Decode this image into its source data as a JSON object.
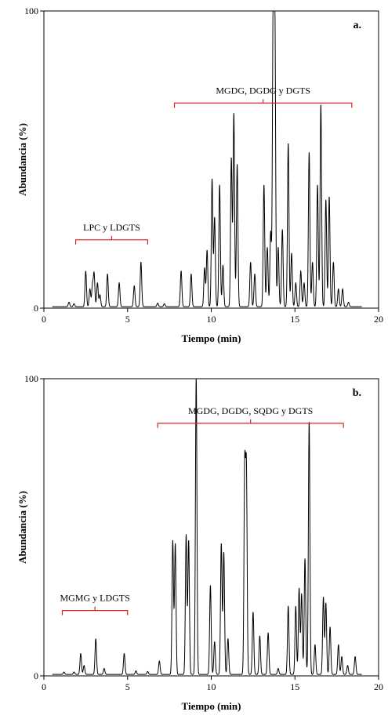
{
  "chart_data": [
    {
      "type": "line",
      "panel_label": "a.",
      "xlabel": "Tiempo (min)",
      "ylabel": "Abundancia (%)",
      "xlim": [
        0,
        20
      ],
      "ylim": [
        0,
        100
      ],
      "xticks": [
        0,
        5,
        10,
        15,
        20
      ],
      "yticks": [
        0,
        100
      ],
      "grid": false,
      "baseline": 0.5,
      "peaks": [
        {
          "x": 1.5,
          "y": 1.5
        },
        {
          "x": 1.8,
          "y": 1.0
        },
        {
          "x": 2.5,
          "y": 12
        },
        {
          "x": 2.75,
          "y": 6
        },
        {
          "x": 2.9,
          "y": 7
        },
        {
          "x": 3.0,
          "y": 11
        },
        {
          "x": 3.2,
          "y": 8
        },
        {
          "x": 3.35,
          "y": 4
        },
        {
          "x": 3.8,
          "y": 11
        },
        {
          "x": 4.5,
          "y": 8
        },
        {
          "x": 5.4,
          "y": 7
        },
        {
          "x": 5.8,
          "y": 15
        },
        {
          "x": 6.8,
          "y": 1.2
        },
        {
          "x": 7.2,
          "y": 1.0
        },
        {
          "x": 8.2,
          "y": 12
        },
        {
          "x": 8.8,
          "y": 11
        },
        {
          "x": 9.6,
          "y": 13
        },
        {
          "x": 9.75,
          "y": 19
        },
        {
          "x": 10.05,
          "y": 43
        },
        {
          "x": 10.2,
          "y": 30
        },
        {
          "x": 10.5,
          "y": 41
        },
        {
          "x": 10.7,
          "y": 14
        },
        {
          "x": 11.2,
          "y": 50
        },
        {
          "x": 11.35,
          "y": 65
        },
        {
          "x": 11.55,
          "y": 48
        },
        {
          "x": 12.35,
          "y": 15
        },
        {
          "x": 12.6,
          "y": 11
        },
        {
          "x": 13.15,
          "y": 41
        },
        {
          "x": 13.35,
          "y": 20
        },
        {
          "x": 13.55,
          "y": 25
        },
        {
          "x": 13.7,
          "y": 100
        },
        {
          "x": 13.8,
          "y": 96
        },
        {
          "x": 14.0,
          "y": 20
        },
        {
          "x": 14.25,
          "y": 26
        },
        {
          "x": 14.6,
          "y": 55
        },
        {
          "x": 14.8,
          "y": 18
        },
        {
          "x": 15.05,
          "y": 8
        },
        {
          "x": 15.35,
          "y": 12
        },
        {
          "x": 15.55,
          "y": 8
        },
        {
          "x": 15.85,
          "y": 52
        },
        {
          "x": 16.05,
          "y": 15
        },
        {
          "x": 16.35,
          "y": 41
        },
        {
          "x": 16.55,
          "y": 68
        },
        {
          "x": 16.85,
          "y": 36
        },
        {
          "x": 17.05,
          "y": 37
        },
        {
          "x": 17.3,
          "y": 15
        },
        {
          "x": 17.6,
          "y": 6
        },
        {
          "x": 17.85,
          "y": 6
        },
        {
          "x": 18.2,
          "y": 1.5
        }
      ],
      "annotations": [
        {
          "text": "LPC y LDGTS",
          "x_start": 1.9,
          "x_end": 6.2,
          "y": 23
        },
        {
          "text": "MGDG, DGDG   y DGTS",
          "x_start": 7.8,
          "x_end": 18.4,
          "y": 69
        }
      ]
    },
    {
      "type": "line",
      "panel_label": "b.",
      "xlabel": "Tiempo (min)",
      "ylabel": "Abundancia (%)",
      "xlim": [
        0,
        20
      ],
      "ylim": [
        0,
        100
      ],
      "xticks": [
        0,
        5,
        10,
        15,
        20
      ],
      "yticks": [
        0,
        100
      ],
      "grid": false,
      "baseline": 0.5,
      "peaks": [
        {
          "x": 1.2,
          "y": 0.8
        },
        {
          "x": 1.8,
          "y": 0.8
        },
        {
          "x": 2.2,
          "y": 7
        },
        {
          "x": 2.4,
          "y": 3
        },
        {
          "x": 3.1,
          "y": 12
        },
        {
          "x": 3.6,
          "y": 2
        },
        {
          "x": 4.8,
          "y": 7
        },
        {
          "x": 5.5,
          "y": 1.2
        },
        {
          "x": 6.2,
          "y": 1.0
        },
        {
          "x": 6.9,
          "y": 4.5
        },
        {
          "x": 7.7,
          "y": 45
        },
        {
          "x": 7.85,
          "y": 44
        },
        {
          "x": 8.5,
          "y": 47
        },
        {
          "x": 8.65,
          "y": 45
        },
        {
          "x": 9.1,
          "y": 100
        },
        {
          "x": 9.95,
          "y": 30
        },
        {
          "x": 10.2,
          "y": 11
        },
        {
          "x": 10.6,
          "y": 44
        },
        {
          "x": 10.75,
          "y": 41
        },
        {
          "x": 11.0,
          "y": 12
        },
        {
          "x": 12.0,
          "y": 68
        },
        {
          "x": 12.1,
          "y": 67
        },
        {
          "x": 12.5,
          "y": 21
        },
        {
          "x": 12.9,
          "y": 13
        },
        {
          "x": 13.4,
          "y": 14
        },
        {
          "x": 14.0,
          "y": 2
        },
        {
          "x": 14.6,
          "y": 23
        },
        {
          "x": 15.05,
          "y": 23
        },
        {
          "x": 15.25,
          "y": 29
        },
        {
          "x": 15.4,
          "y": 27
        },
        {
          "x": 15.6,
          "y": 39
        },
        {
          "x": 15.85,
          "y": 85
        },
        {
          "x": 16.2,
          "y": 10
        },
        {
          "x": 16.7,
          "y": 26
        },
        {
          "x": 16.85,
          "y": 24
        },
        {
          "x": 17.1,
          "y": 16
        },
        {
          "x": 17.6,
          "y": 10
        },
        {
          "x": 17.8,
          "y": 6
        },
        {
          "x": 18.15,
          "y": 3
        },
        {
          "x": 18.6,
          "y": 6
        }
      ],
      "annotations": [
        {
          "text": "MGMG y LDGTS",
          "x_start": 1.1,
          "x_end": 5.0,
          "y": 22
        },
        {
          "text": "MGDG, DGDG, SQDG y DGTS",
          "x_start": 6.8,
          "x_end": 17.9,
          "y": 85
        }
      ]
    }
  ]
}
